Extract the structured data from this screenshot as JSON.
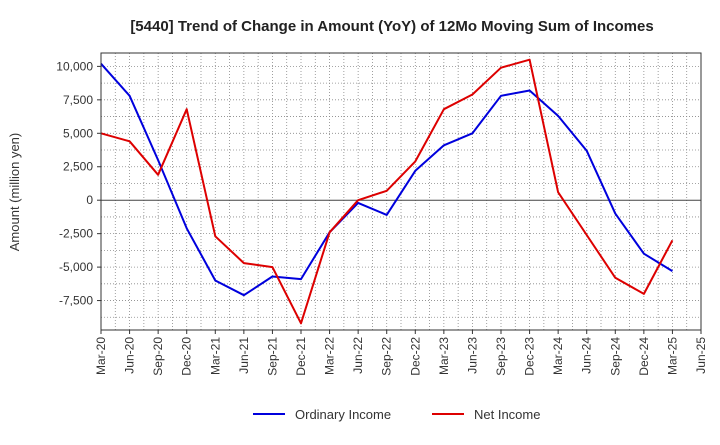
{
  "chart_data": {
    "type": "line",
    "title": "[5440]  Trend of Change in Amount (YoY) of 12Mo Moving Sum of Incomes",
    "ylabel": "Amount (million yen)",
    "xlabel": "",
    "ylim": [
      -9700,
      11000
    ],
    "yticks": [
      10000,
      7500,
      5000,
      2500,
      0,
      -2500,
      -5000,
      -7500
    ],
    "ytick_labels": [
      "10,000",
      "7,500",
      "5,000",
      "2,500",
      "0",
      "-2,500",
      "-5,000",
      "-7,500"
    ],
    "x_labels": [
      "Mar-20",
      "Jun-20",
      "Sep-20",
      "Dec-20",
      "Mar-21",
      "Jun-21",
      "Sep-21",
      "Dec-21",
      "Mar-22",
      "Jun-22",
      "Sep-22",
      "Dec-22",
      "Mar-23",
      "Jun-23",
      "Sep-23",
      "Dec-23",
      "Mar-24",
      "Jun-24",
      "Sep-24",
      "Dec-24",
      "Mar-25",
      "Jun-25"
    ],
    "x": [
      "Mar-20",
      "Jun-20",
      "Sep-20",
      "Dec-20",
      "Mar-21",
      "Jun-21",
      "Sep-21",
      "Dec-21",
      "Mar-22",
      "Jun-22",
      "Sep-22",
      "Dec-22",
      "Mar-23",
      "Jun-23",
      "Sep-23",
      "Dec-23",
      "Mar-24",
      "Jun-24",
      "Sep-24",
      "Dec-24",
      "Mar-25"
    ],
    "grid": true,
    "legend_position": "bottom",
    "series": [
      {
        "name": "Ordinary Income",
        "color": "#0000dd",
        "values": [
          10200,
          7800,
          3000,
          -2100,
          -6000,
          -7100,
          -5700,
          -5900,
          -2400,
          -200,
          -1100,
          2200,
          4100,
          5000,
          7800,
          8200,
          6300,
          3700,
          -1000,
          -4000,
          -5300
        ]
      },
      {
        "name": "Net Income",
        "color": "#dd0000",
        "values": [
          5000,
          4400,
          1900,
          6800,
          -2700,
          -4700,
          -5000,
          -9200,
          -2400,
          0,
          700,
          2900,
          6800,
          7900,
          9900,
          10500,
          600,
          -2600,
          -5800,
          -7000,
          -3000
        ]
      }
    ]
  }
}
